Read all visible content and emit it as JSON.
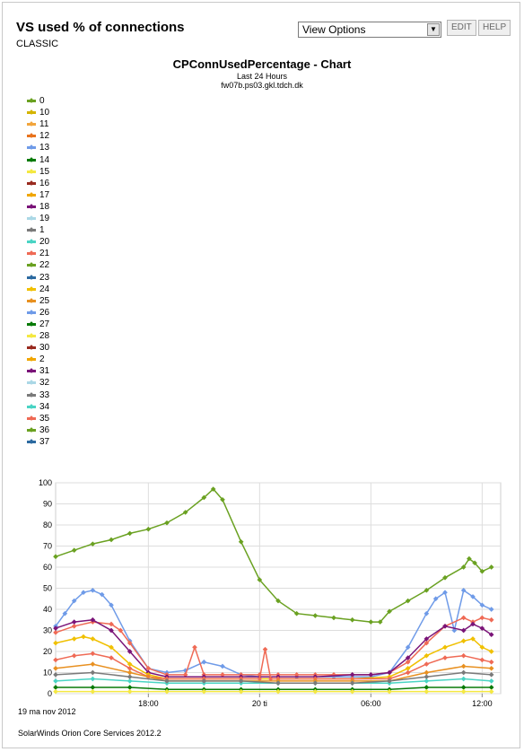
{
  "header": {
    "title": "VS used % of connections",
    "subtitle": "CLASSIC",
    "view_options": "View Options",
    "edit_label": "EDIT",
    "help_label": "HELP"
  },
  "chart_header": {
    "title": "CPConnUsedPercentage - Chart",
    "period": "Last 24 Hours",
    "device": "fw07b.ps03.gkl.tdch.dk"
  },
  "legend": [
    {
      "label": "0",
      "color": "#6aa121"
    },
    {
      "label": "10",
      "color": "#d4b400"
    },
    {
      "label": "11",
      "color": "#f2a53c"
    },
    {
      "label": "12",
      "color": "#e8731e"
    },
    {
      "label": "13",
      "color": "#6f9be8"
    },
    {
      "label": "14",
      "color": "#087a08"
    },
    {
      "label": "15",
      "color": "#f4e842"
    },
    {
      "label": "16",
      "color": "#992a1f"
    },
    {
      "label": "17",
      "color": "#f0a600"
    },
    {
      "label": "18",
      "color": "#7a1478"
    },
    {
      "label": "19",
      "color": "#abd8e6"
    },
    {
      "label": "1",
      "color": "#7a7a7a"
    },
    {
      "label": "20",
      "color": "#4ad4c4"
    },
    {
      "label": "21",
      "color": "#ef6a55"
    },
    {
      "label": "22",
      "color": "#6aa121"
    },
    {
      "label": "23",
      "color": "#2c6aa0"
    },
    {
      "label": "24",
      "color": "#f0c000"
    },
    {
      "label": "25",
      "color": "#e89020"
    },
    {
      "label": "26",
      "color": "#6f9be8"
    },
    {
      "label": "27",
      "color": "#087a08"
    },
    {
      "label": "28",
      "color": "#f4e842"
    },
    {
      "label": "30",
      "color": "#992a1f"
    },
    {
      "label": "2",
      "color": "#f0a600"
    },
    {
      "label": "31",
      "color": "#7a1478"
    },
    {
      "label": "32",
      "color": "#abd8e6"
    },
    {
      "label": "33",
      "color": "#7a7a7a"
    },
    {
      "label": "34",
      "color": "#4ad4c4"
    },
    {
      "label": "35",
      "color": "#ef6a55"
    },
    {
      "label": "36",
      "color": "#6aa121"
    },
    {
      "label": "37",
      "color": "#2c6aa0"
    }
  ],
  "chart_data": {
    "type": "line",
    "ylim": [
      0,
      100
    ],
    "yticks": [
      0,
      10,
      20,
      30,
      40,
      50,
      60,
      70,
      80,
      90,
      100
    ],
    "xlim": [
      0,
      24
    ],
    "xtick_labels": [
      {
        "label": "18:00",
        "hour": 5
      },
      {
        "label": "20 ti",
        "hour": 11
      },
      {
        "label": "06:00",
        "hour": 17
      },
      {
        "label": "12:00",
        "hour": 23
      }
    ],
    "grid": true,
    "series": [
      {
        "name": "0",
        "color": "#6aa121",
        "x": [
          0,
          1,
          2,
          3,
          4,
          5,
          6,
          7,
          8,
          8.5,
          9,
          10,
          11,
          12,
          13,
          14,
          15,
          16,
          17,
          17.5,
          18,
          19,
          20,
          21,
          22,
          22.3,
          22.6,
          23,
          23.5
        ],
        "y": [
          65,
          68,
          71,
          73,
          76,
          78,
          81,
          86,
          93,
          97,
          92,
          72,
          54,
          44,
          38,
          37,
          36,
          35,
          34,
          34,
          39,
          44,
          49,
          55,
          60,
          64,
          62,
          58,
          60
        ]
      },
      {
        "name": "26",
        "color": "#6f9be8",
        "x": [
          0,
          0.5,
          1,
          1.5,
          2,
          2.5,
          3,
          4,
          5,
          6,
          7,
          8,
          9,
          10,
          11,
          12,
          13,
          14,
          15,
          16,
          17,
          18,
          19,
          20,
          20.5,
          21,
          21.5,
          22,
          22.5,
          23,
          23.5
        ],
        "y": [
          32,
          38,
          44,
          48,
          49,
          47,
          42,
          25,
          12,
          10,
          11,
          15,
          13,
          9,
          8,
          8,
          8,
          8,
          8,
          8,
          8,
          10,
          22,
          38,
          45,
          48,
          30,
          49,
          46,
          42,
          40
        ]
      },
      {
        "name": "21",
        "color": "#ef6a55",
        "x": [
          0,
          1,
          2,
          3,
          3.5,
          4,
          5,
          6,
          7,
          7.5,
          8,
          9,
          10,
          11,
          12,
          13,
          14,
          15,
          16,
          17,
          18,
          19,
          20,
          21,
          22,
          22.5,
          23,
          23.5
        ],
        "y": [
          29,
          32,
          34,
          33,
          30,
          24,
          12,
          9,
          9,
          22,
          9,
          9,
          9,
          9,
          9,
          9,
          9,
          9,
          9,
          9,
          10,
          15,
          24,
          32,
          36,
          34,
          36,
          35
        ]
      },
      {
        "name": "31",
        "color": "#7a1478",
        "x": [
          0,
          1,
          2,
          3,
          4,
          5,
          6,
          8,
          10,
          12,
          14,
          16,
          17,
          18,
          19,
          20,
          21,
          22,
          22.5,
          23,
          23.5
        ],
        "y": [
          31,
          34,
          35,
          30,
          20,
          10,
          8,
          8,
          8,
          8,
          8,
          9,
          9,
          10,
          17,
          26,
          32,
          30,
          33,
          31,
          28
        ]
      },
      {
        "name": "24",
        "color": "#f0c000",
        "x": [
          0,
          1,
          1.5,
          2,
          3,
          4,
          5,
          6,
          8,
          10,
          12,
          14,
          16,
          18,
          19,
          20,
          21,
          22,
          22.5,
          23,
          23.5
        ],
        "y": [
          24,
          26,
          27,
          26,
          22,
          14,
          9,
          7,
          7,
          7,
          7,
          7,
          7,
          8,
          12,
          18,
          22,
          25,
          26,
          22,
          20
        ]
      },
      {
        "name": "35",
        "color": "#ef6a55",
        "x": [
          0,
          1,
          2,
          3,
          4,
          5,
          6,
          8,
          10,
          11,
          11.3,
          11.6,
          12,
          14,
          16,
          18,
          19,
          20,
          21,
          22,
          23,
          23.5
        ],
        "y": [
          16,
          18,
          19,
          17,
          12,
          8,
          7,
          7,
          7,
          7,
          21,
          7,
          7,
          7,
          7,
          7,
          10,
          14,
          17,
          18,
          16,
          15
        ]
      },
      {
        "name": "25",
        "color": "#e89020",
        "x": [
          0,
          2,
          4,
          6,
          8,
          10,
          12,
          14,
          16,
          18,
          20,
          22,
          23.5
        ],
        "y": [
          12,
          14,
          10,
          6,
          6,
          6,
          6,
          6,
          6,
          6,
          10,
          13,
          12
        ]
      },
      {
        "name": "20",
        "color": "#4ad4c4",
        "x": [
          0,
          2,
          4,
          6,
          8,
          10,
          12,
          14,
          16,
          18,
          20,
          22,
          23.5
        ],
        "y": [
          6,
          7,
          6,
          5,
          5,
          5,
          5,
          5,
          5,
          5,
          6,
          7,
          6
        ]
      },
      {
        "name": "33",
        "color": "#7a7a7a",
        "x": [
          0,
          2,
          4,
          6,
          8,
          10,
          12,
          14,
          16,
          18,
          20,
          22,
          23.5
        ],
        "y": [
          9,
          10,
          8,
          6,
          6,
          6,
          5,
          5,
          5,
          6,
          8,
          10,
          9
        ]
      },
      {
        "name": "14",
        "color": "#087a08",
        "x": [
          0,
          2,
          4,
          6,
          8,
          10,
          12,
          14,
          16,
          18,
          20,
          22,
          23.5
        ],
        "y": [
          3,
          3,
          3,
          2,
          2,
          2,
          2,
          2,
          2,
          2,
          3,
          3,
          3
        ]
      },
      {
        "name": "15",
        "color": "#f4e842",
        "x": [
          0,
          2,
          4,
          6,
          8,
          10,
          12,
          14,
          16,
          18,
          20,
          22,
          23.5
        ],
        "y": [
          1,
          1,
          1,
          1,
          1,
          1,
          1,
          1,
          1,
          1,
          1,
          1,
          1
        ]
      }
    ]
  },
  "footer": {
    "date": "19 ma nov 2012",
    "product": "SolarWinds Orion Core Services 2012.2"
  }
}
